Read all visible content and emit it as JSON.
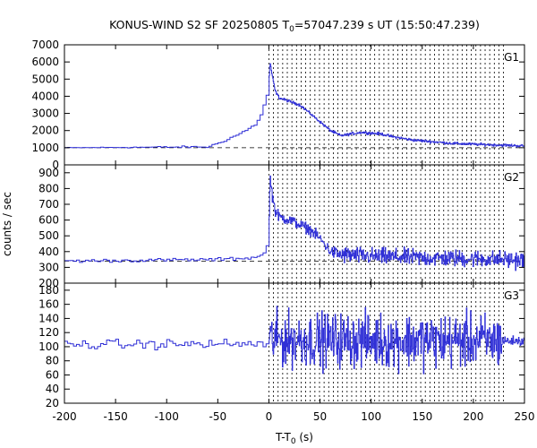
{
  "chart_data": {
    "type": "line",
    "title_main": "KONUS-WIND S2 SF 20250805 T",
    "title_sub": "0",
    "title_rest": "=57047.239 s UT (15:50:47.239)",
    "xlabel_main": "T-T",
    "xlabel_sub": "0",
    "xlabel_rest": " (s)",
    "ylabel": "counts / sec",
    "xlim": [
      -200,
      250
    ],
    "xticks": [
      -200,
      -150,
      -100,
      -50,
      0,
      50,
      100,
      150,
      200,
      250
    ],
    "xtick_labels": [
      "-200",
      "-150",
      "-100",
      "-50",
      "0",
      "50",
      "100",
      "150",
      "200",
      "250"
    ],
    "vertical_markers": [
      0,
      4.5,
      9,
      13.5,
      18,
      22.5,
      27,
      31.5,
      36,
      40.5,
      45,
      49.5,
      54,
      58.5,
      63,
      67.5,
      72,
      76.5,
      81,
      85.5,
      90,
      94.5,
      99,
      103.5,
      108,
      112.5,
      117,
      121.5,
      126,
      130.5,
      135,
      139.5,
      144,
      148.5,
      153,
      157.5,
      162,
      166.5,
      171,
      175.5,
      180,
      184.5,
      189,
      193.5,
      198,
      202.5,
      207,
      211.5,
      216,
      220.5,
      225,
      229.5
    ],
    "panels": [
      {
        "name": "G1",
        "ylim": [
          0,
          7000
        ],
        "yticks": [
          0,
          1000,
          2000,
          3000,
          4000,
          5000,
          6000,
          7000
        ],
        "ytick_labels": [
          "0",
          "1000",
          "2000",
          "3000",
          "4000",
          "5000",
          "6000",
          "7000"
        ],
        "background_level": 1000,
        "profile": [
          [
            -200,
            1000
          ],
          [
            -60,
            1050
          ],
          [
            -45,
            1400
          ],
          [
            -30,
            1800
          ],
          [
            -15,
            2300
          ],
          [
            -8,
            3000
          ],
          [
            -3,
            4000
          ],
          [
            0,
            5000
          ],
          [
            1,
            6000
          ],
          [
            3,
            5200
          ],
          [
            6,
            4300
          ],
          [
            10,
            3900
          ],
          [
            20,
            3700
          ],
          [
            30,
            3500
          ],
          [
            40,
            3000
          ],
          [
            50,
            2500
          ],
          [
            60,
            2000
          ],
          [
            70,
            1700
          ],
          [
            80,
            1800
          ],
          [
            90,
            1900
          ],
          [
            100,
            1850
          ],
          [
            110,
            1800
          ],
          [
            120,
            1650
          ],
          [
            140,
            1450
          ],
          [
            160,
            1350
          ],
          [
            180,
            1250
          ],
          [
            200,
            1200
          ],
          [
            228,
            1150
          ],
          [
            250,
            1100
          ]
        ],
        "noise": [
          [
            -200,
            15
          ],
          [
            0,
            60
          ],
          [
            250,
            60
          ]
        ],
        "color": "#2f2fd6"
      },
      {
        "name": "G2",
        "ylim": [
          200,
          950
        ],
        "yticks": [
          200,
          300,
          400,
          500,
          600,
          700,
          800,
          900
        ],
        "ytick_labels": [
          "200",
          "300",
          "400",
          "500",
          "600",
          "700",
          "800",
          "900"
        ],
        "background_level": 340,
        "profile": [
          [
            -200,
            340
          ],
          [
            -50,
            350
          ],
          [
            -20,
            360
          ],
          [
            -10,
            370
          ],
          [
            -3,
            420
          ],
          [
            0,
            550
          ],
          [
            1,
            880
          ],
          [
            3,
            760
          ],
          [
            6,
            660
          ],
          [
            10,
            620
          ],
          [
            20,
            600
          ],
          [
            30,
            570
          ],
          [
            40,
            540
          ],
          [
            50,
            480
          ],
          [
            60,
            400
          ],
          [
            70,
            380
          ],
          [
            100,
            370
          ],
          [
            150,
            360
          ],
          [
            200,
            355
          ],
          [
            228,
            350
          ],
          [
            250,
            345
          ]
        ],
        "noise": [
          [
            -200,
            8
          ],
          [
            -1,
            8
          ],
          [
            0,
            25
          ],
          [
            60,
            25
          ],
          [
            70,
            40
          ],
          [
            250,
            40
          ]
        ],
        "color": "#2f2fd6"
      },
      {
        "name": "G3",
        "ylim": [
          20,
          190
        ],
        "yticks": [
          20,
          40,
          60,
          80,
          100,
          120,
          140,
          160,
          180
        ],
        "ytick_labels": [
          "20",
          "40",
          "60",
          "80",
          "100",
          "120",
          "140",
          "160",
          "180"
        ],
        "background_level": null,
        "profile": [
          [
            -200,
            103
          ],
          [
            0,
            104
          ],
          [
            1,
            110
          ],
          [
            250,
            108
          ]
        ],
        "noise": [
          [
            -200,
            5
          ],
          [
            -1,
            5
          ],
          [
            0,
            28
          ],
          [
            228,
            28
          ],
          [
            229,
            5
          ],
          [
            250,
            5
          ]
        ],
        "color": "#2f2fd6"
      }
    ]
  }
}
